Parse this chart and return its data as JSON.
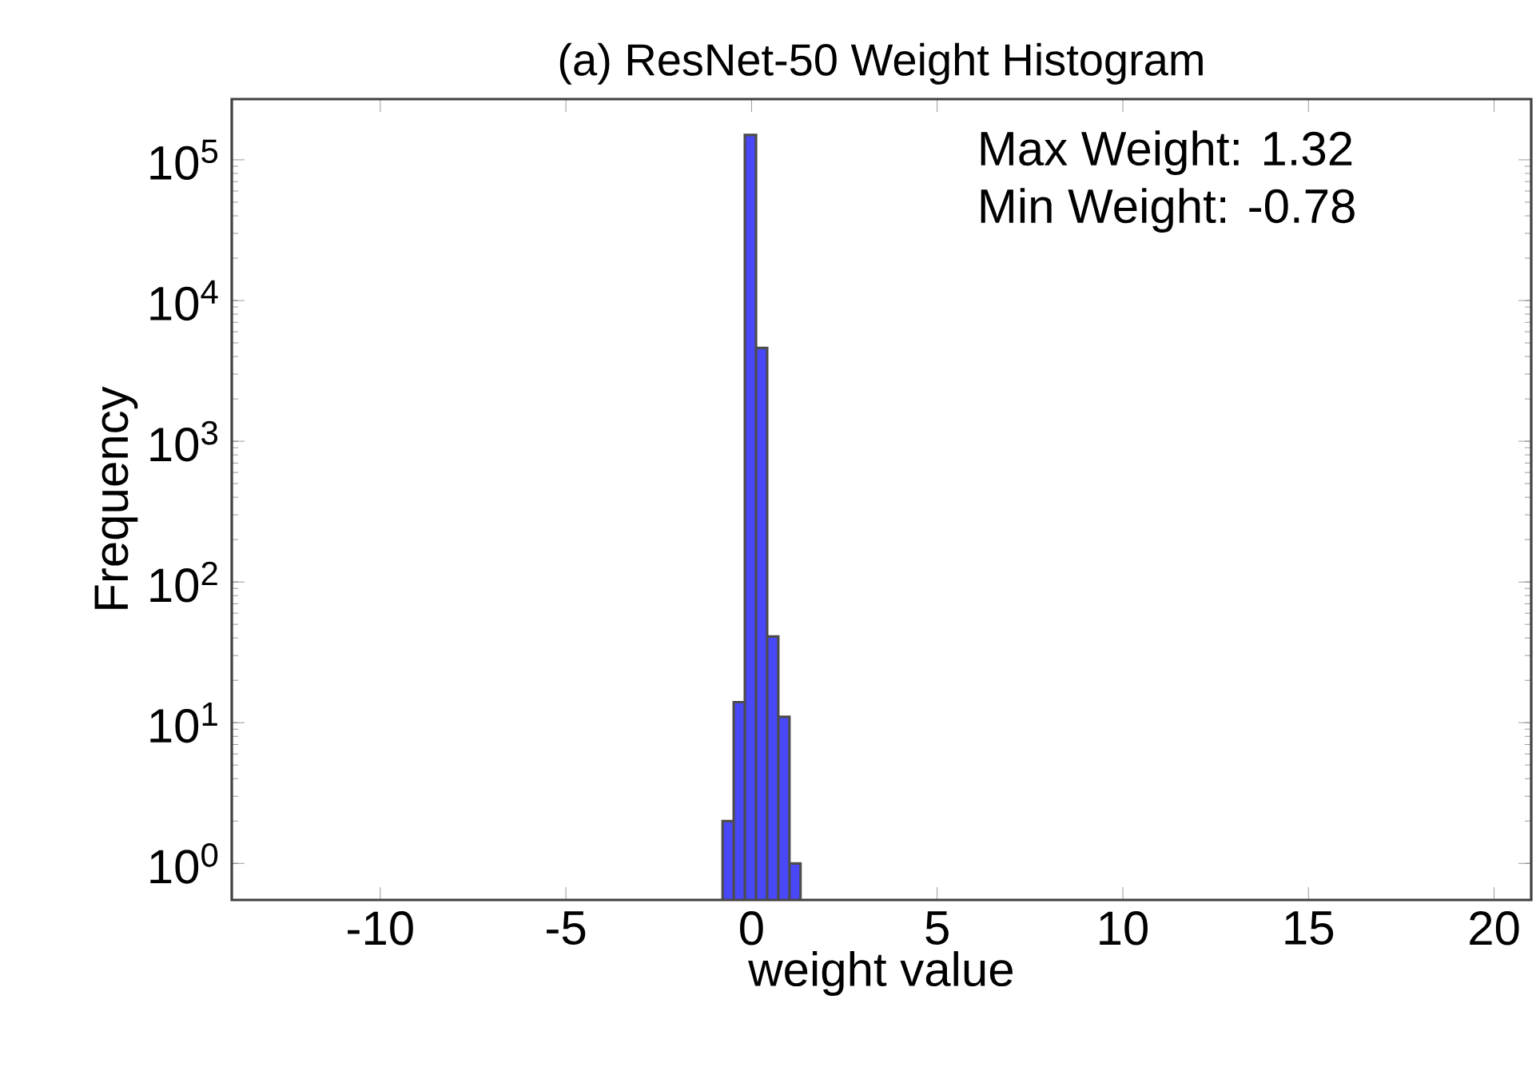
{
  "chart_data": {
    "type": "histogram",
    "title": "(a) ResNet-50 Weight Histogram",
    "xlabel": "weight value",
    "ylabel": "Frequency",
    "bins": [
      -0.78,
      -0.48,
      -0.18,
      0.12,
      0.42,
      0.72,
      1.02,
      1.32
    ],
    "values": [
      2,
      14,
      150000,
      4600,
      41,
      11,
      1
    ],
    "color": "#4848f8",
    "log": "y",
    "xlim": [
      -14,
      21
    ],
    "xticks": [
      -10,
      -5,
      0,
      5,
      10,
      15,
      20
    ],
    "ylim": [
      0.55,
      270000
    ],
    "yticks": [
      {
        "value": 1,
        "label": "10$^{0}$"
      },
      {
        "value": 10,
        "label": "10$^{1}$"
      },
      {
        "value": 100,
        "label": "10$^{2}$"
      },
      {
        "value": 1000,
        "label": "10$^{3}$"
      },
      {
        "value": 10000,
        "label": "10$^{4}$"
      },
      {
        "value": 100000,
        "label": "10$^{5}$"
      }
    ],
    "annotations": [
      "Max Weight: 1.32",
      "Min Weight: -0.78"
    ]
  }
}
